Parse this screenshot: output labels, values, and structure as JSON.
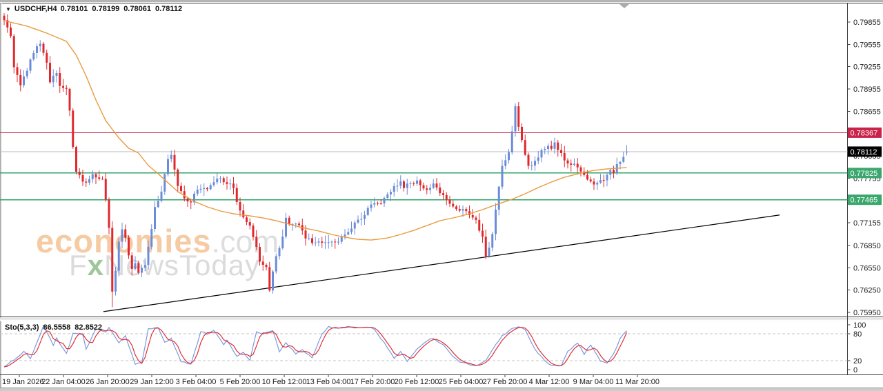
{
  "window": {
    "title": {
      "symbol_period": "USDCHF,H4",
      "open": "0.78101",
      "high": "0.78199",
      "low": "0.78061",
      "close": "0.78112"
    }
  },
  "watermark": {
    "brand": "economies",
    "brand_suffix": ".com",
    "tagline_f": "F",
    "tagline_x": "x",
    "tagline_rest": "NewsToday"
  },
  "indicator": {
    "label": "Sto(5,3,3)",
    "k_value": "86.5558",
    "d_value": "82.8522"
  },
  "chart_data": {
    "type": "candlestick",
    "symbol": "USDCHF",
    "timeframe": "H4",
    "last_bar": {
      "open": 0.78101,
      "high": 0.78199,
      "low": 0.78061,
      "close": 0.78112
    },
    "ylim": [
      0.75894,
      0.80105
    ],
    "y_axis_ticks": [
      "0.79855",
      "0.79555",
      "0.79255",
      "0.78955",
      "0.78655",
      "0.78355",
      "0.78055",
      "0.77755",
      "0.77455",
      "0.77155",
      "0.76850",
      "0.76550",
      "0.76250",
      "0.75950"
    ],
    "x_axis_labels": [
      "19 Jan 2026",
      "22 Jan 04:00",
      "26 Jan 20:00",
      "29 Jan 12:00",
      "3 Feb 04:00",
      "5 Feb 20:00",
      "10 Feb 12:00",
      "13 Feb 04:00",
      "17 Feb 20:00",
      "20 Feb 12:00",
      "25 Feb 04:00",
      "27 Feb 20:00",
      "4 Mar 12:00",
      "9 Mar 04:00",
      "11 Mar 20:00"
    ],
    "bars": 191,
    "close_anchors": [
      [
        0,
        0.7989
      ],
      [
        2,
        0.7969
      ],
      [
        3,
        0.7927
      ],
      [
        5,
        0.7899
      ],
      [
        7,
        0.7922
      ],
      [
        9,
        0.7946
      ],
      [
        11,
        0.7955
      ],
      [
        13,
        0.7932
      ],
      [
        14,
        0.7906
      ],
      [
        16,
        0.7915
      ],
      [
        17,
        0.7902
      ],
      [
        19,
        0.7895
      ],
      [
        20,
        0.7867
      ],
      [
        21,
        0.7819
      ],
      [
        22,
        0.7783
      ],
      [
        25,
        0.7767
      ],
      [
        27,
        0.7779
      ],
      [
        30,
        0.7772
      ],
      [
        31,
        0.7746
      ],
      [
        32,
        0.7709
      ],
      [
        33,
        0.7621
      ],
      [
        34,
        0.7649
      ],
      [
        35,
        0.7691
      ],
      [
        36,
        0.7709
      ],
      [
        37,
        0.7695
      ],
      [
        38,
        0.7672
      ],
      [
        39,
        0.7653
      ],
      [
        40,
        0.7663
      ],
      [
        41,
        0.7649
      ],
      [
        43,
        0.7659
      ],
      [
        44,
        0.7681
      ],
      [
        45,
        0.7709
      ],
      [
        46,
        0.7737
      ],
      [
        48,
        0.7755
      ],
      [
        49,
        0.7779
      ],
      [
        50,
        0.7801
      ],
      [
        51,
        0.7809
      ],
      [
        52,
        0.7785
      ],
      [
        53,
        0.7763
      ],
      [
        55,
        0.7751
      ],
      [
        56,
        0.7746
      ],
      [
        57,
        0.7742
      ],
      [
        58,
        0.7753
      ],
      [
        60,
        0.7763
      ],
      [
        62,
        0.7763
      ],
      [
        65,
        0.7776
      ],
      [
        67,
        0.7772
      ],
      [
        70,
        0.7763
      ],
      [
        71,
        0.7746
      ],
      [
        72,
        0.7732
      ],
      [
        74,
        0.7718
      ],
      [
        75,
        0.7709
      ],
      [
        76,
        0.7695
      ],
      [
        77,
        0.7681
      ],
      [
        78,
        0.7663
      ],
      [
        80,
        0.7655
      ],
      [
        81,
        0.7626
      ],
      [
        82,
        0.7649
      ],
      [
        83,
        0.7672
      ],
      [
        85,
        0.7695
      ],
      [
        86,
        0.7723
      ],
      [
        87,
        0.7714
      ],
      [
        90,
        0.7712
      ],
      [
        92,
        0.7695
      ],
      [
        95,
        0.7689
      ],
      [
        98,
        0.7691
      ],
      [
        102,
        0.7691
      ],
      [
        106,
        0.7709
      ],
      [
        110,
        0.7728
      ],
      [
        112,
        0.7742
      ],
      [
        115,
        0.7742
      ],
      [
        117,
        0.7755
      ],
      [
        120,
        0.7767
      ],
      [
        121,
        0.7772
      ],
      [
        122,
        0.7765
      ],
      [
        125,
        0.7767
      ],
      [
        126,
        0.7772
      ],
      [
        129,
        0.7758
      ],
      [
        131,
        0.7767
      ],
      [
        134,
        0.7751
      ],
      [
        136,
        0.7742
      ],
      [
        139,
        0.7732
      ],
      [
        141,
        0.7732
      ],
      [
        144,
        0.772
      ],
      [
        146,
        0.7695
      ],
      [
        147,
        0.7672
      ],
      [
        148,
        0.7681
      ],
      [
        149,
        0.77
      ],
      [
        150,
        0.7733
      ],
      [
        151,
        0.7762
      ],
      [
        152,
        0.779
      ],
      [
        153,
        0.78
      ],
      [
        154,
        0.7812
      ],
      [
        155,
        0.784
      ],
      [
        156,
        0.7872
      ],
      [
        157,
        0.7844
      ],
      [
        158,
        0.7825
      ],
      [
        159,
        0.7807
      ],
      [
        160,
        0.7793
      ],
      [
        161,
        0.7791
      ],
      [
        162,
        0.7797
      ],
      [
        164,
        0.7813
      ],
      [
        166,
        0.7821
      ],
      [
        167,
        0.7815
      ],
      [
        168,
        0.7825
      ],
      [
        170,
        0.7807
      ],
      [
        171,
        0.7797
      ],
      [
        173,
        0.7794
      ],
      [
        175,
        0.7791
      ],
      [
        176,
        0.7782
      ],
      [
        178,
        0.7774
      ],
      [
        180,
        0.7765
      ],
      [
        181,
        0.7772
      ],
      [
        183,
        0.7772
      ],
      [
        184,
        0.7779
      ],
      [
        185,
        0.7785
      ],
      [
        186,
        0.7782
      ],
      [
        187,
        0.7792
      ],
      [
        188,
        0.78
      ],
      [
        189,
        0.7806
      ],
      [
        190,
        0.78112
      ]
    ],
    "wick_overrides": [
      {
        "i": 33,
        "low": 0.7602
      },
      {
        "i": 21,
        "low": 0.7815
      },
      {
        "i": 156,
        "high": 0.7876
      }
    ],
    "ma_anchors": [
      [
        0,
        0.79874
      ],
      [
        7,
        0.798
      ],
      [
        13,
        0.79707
      ],
      [
        19,
        0.79595
      ],
      [
        22,
        0.7941
      ],
      [
        25,
        0.79131
      ],
      [
        28,
        0.78807
      ],
      [
        31,
        0.78528
      ],
      [
        35,
        0.78297
      ],
      [
        38,
        0.78158
      ],
      [
        41,
        0.78093
      ],
      [
        44,
        0.77926
      ],
      [
        47,
        0.77814
      ],
      [
        50,
        0.77694
      ],
      [
        53,
        0.77573
      ],
      [
        58,
        0.77443
      ],
      [
        62,
        0.77369
      ],
      [
        66,
        0.77313
      ],
      [
        70,
        0.77276
      ],
      [
        75,
        0.77248
      ],
      [
        79,
        0.7722
      ],
      [
        83,
        0.77183
      ],
      [
        87,
        0.77137
      ],
      [
        91,
        0.7709
      ],
      [
        96,
        0.77044
      ],
      [
        100,
        0.76998
      ],
      [
        104,
        0.76961
      ],
      [
        108,
        0.76933
      ],
      [
        112,
        0.76923
      ],
      [
        117,
        0.76951
      ],
      [
        121,
        0.76998
      ],
      [
        125,
        0.77053
      ],
      [
        129,
        0.77118
      ],
      [
        133,
        0.77183
      ],
      [
        138,
        0.7723
      ],
      [
        142,
        0.77276
      ],
      [
        146,
        0.77332
      ],
      [
        150,
        0.77397
      ],
      [
        155,
        0.77471
      ],
      [
        159,
        0.77545
      ],
      [
        163,
        0.77629
      ],
      [
        167,
        0.77703
      ],
      [
        171,
        0.77768
      ],
      [
        176,
        0.77823
      ],
      [
        180,
        0.7786
      ],
      [
        184,
        0.77879
      ],
      [
        190,
        0.77898
      ]
    ],
    "hlines": [
      {
        "price": 0.78367,
        "label": "0.78367",
        "color": "#c9234a",
        "label_bg": "#c9234a",
        "role": "resistance"
      },
      {
        "price": 0.78112,
        "label": "0.78112",
        "color": "#b9b9b9",
        "label_bg": "#000000",
        "role": "current-price"
      },
      {
        "price": 0.77825,
        "label": "0.77825",
        "color": "#2fa266",
        "label_bg": "#3aa76d",
        "role": "support"
      },
      {
        "price": 0.77465,
        "label": "0.77465",
        "color": "#2fa266",
        "label_bg": "#3aa76d",
        "role": "support"
      }
    ],
    "trendline": {
      "x1_frac": 0.122,
      "price1": 0.7596,
      "x2_frac": 0.92,
      "price2": 0.7726,
      "color": "#000000"
    },
    "stochastic": {
      "label": "Sto(5,3,3)",
      "k_current": 86.5558,
      "d_current": 82.8522,
      "levels": [
        80,
        20
      ],
      "axis_labels": [
        "100",
        "80",
        "20",
        "0"
      ],
      "k_anchors": [
        [
          0,
          5
        ],
        [
          6,
          40
        ],
        [
          8,
          25
        ],
        [
          12,
          97
        ],
        [
          15,
          55
        ],
        [
          16,
          70
        ],
        [
          19,
          35
        ],
        [
          21,
          80
        ],
        [
          24,
          78
        ],
        [
          25,
          45
        ],
        [
          28,
          90
        ],
        [
          31,
          85
        ],
        [
          32,
          93
        ],
        [
          35,
          60
        ],
        [
          37,
          75
        ],
        [
          40,
          12
        ],
        [
          42,
          15
        ],
        [
          44,
          90
        ],
        [
          47,
          95
        ],
        [
          49,
          60
        ],
        [
          51,
          70
        ],
        [
          54,
          18
        ],
        [
          57,
          12
        ],
        [
          60,
          85
        ],
        [
          62,
          80
        ],
        [
          64,
          88
        ],
        [
          67,
          55
        ],
        [
          68,
          65
        ],
        [
          71,
          30
        ],
        [
          73,
          38
        ],
        [
          75,
          20
        ],
        [
          77,
          85
        ],
        [
          79,
          80
        ],
        [
          82,
          88
        ],
        [
          84,
          40
        ],
        [
          86,
          60
        ],
        [
          89,
          35
        ],
        [
          91,
          45
        ],
        [
          94,
          25
        ],
        [
          97,
          80
        ],
        [
          99,
          95
        ],
        [
          102,
          93
        ],
        [
          105,
          95
        ],
        [
          108,
          94
        ],
        [
          111,
          96
        ],
        [
          113,
          90
        ],
        [
          116,
          60
        ],
        [
          119,
          25
        ],
        [
          121,
          40
        ],
        [
          123,
          18
        ],
        [
          126,
          45
        ],
        [
          129,
          65
        ],
        [
          131,
          70
        ],
        [
          134,
          55
        ],
        [
          137,
          30
        ],
        [
          139,
          18
        ],
        [
          142,
          12
        ],
        [
          144,
          8
        ],
        [
          147,
          20
        ],
        [
          149,
          45
        ],
        [
          152,
          75
        ],
        [
          155,
          92
        ],
        [
          157,
          96
        ],
        [
          159,
          90
        ],
        [
          162,
          45
        ],
        [
          165,
          20
        ],
        [
          167,
          10
        ],
        [
          170,
          8
        ],
        [
          172,
          40
        ],
        [
          175,
          60
        ],
        [
          177,
          35
        ],
        [
          179,
          55
        ],
        [
          182,
          20
        ],
        [
          184,
          15
        ],
        [
          186,
          35
        ],
        [
          188,
          70
        ],
        [
          190,
          86.56
        ]
      ]
    },
    "colors": {
      "bull": "#6b8cd9",
      "bear": "#e0282d",
      "ma": "#e89a3c",
      "k_line": "#7b99dd",
      "d_line": "#e02e33",
      "level_dash": "#c6c6c6",
      "frame": "#3f3f3f",
      "axis_text": "#1a1a1a"
    }
  }
}
